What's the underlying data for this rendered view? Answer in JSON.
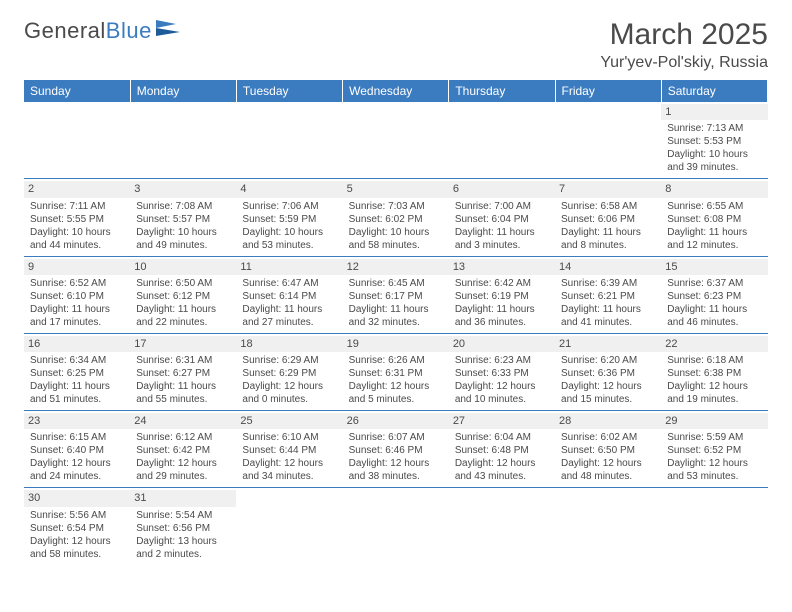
{
  "brand": {
    "word1": "General",
    "word2": "Blue"
  },
  "title": "March 2025",
  "location": "Yur'yev-Pol'skiy, Russia",
  "colors": {
    "header_bg": "#3b7bbf",
    "text": "#4a4a4a",
    "daynum_bg": "#f0f0f0",
    "border": "#3b7bbf"
  },
  "day_headers": [
    "Sunday",
    "Monday",
    "Tuesday",
    "Wednesday",
    "Thursday",
    "Friday",
    "Saturday"
  ],
  "weeks": [
    [
      {
        "n": "",
        "empty": true
      },
      {
        "n": "",
        "empty": true
      },
      {
        "n": "",
        "empty": true
      },
      {
        "n": "",
        "empty": true
      },
      {
        "n": "",
        "empty": true
      },
      {
        "n": "",
        "empty": true
      },
      {
        "n": "1",
        "sunrise": "Sunrise: 7:13 AM",
        "sunset": "Sunset: 5:53 PM",
        "daylight": "Daylight: 10 hours and 39 minutes."
      }
    ],
    [
      {
        "n": "2",
        "sunrise": "Sunrise: 7:11 AM",
        "sunset": "Sunset: 5:55 PM",
        "daylight": "Daylight: 10 hours and 44 minutes."
      },
      {
        "n": "3",
        "sunrise": "Sunrise: 7:08 AM",
        "sunset": "Sunset: 5:57 PM",
        "daylight": "Daylight: 10 hours and 49 minutes."
      },
      {
        "n": "4",
        "sunrise": "Sunrise: 7:06 AM",
        "sunset": "Sunset: 5:59 PM",
        "daylight": "Daylight: 10 hours and 53 minutes."
      },
      {
        "n": "5",
        "sunrise": "Sunrise: 7:03 AM",
        "sunset": "Sunset: 6:02 PM",
        "daylight": "Daylight: 10 hours and 58 minutes."
      },
      {
        "n": "6",
        "sunrise": "Sunrise: 7:00 AM",
        "sunset": "Sunset: 6:04 PM",
        "daylight": "Daylight: 11 hours and 3 minutes."
      },
      {
        "n": "7",
        "sunrise": "Sunrise: 6:58 AM",
        "sunset": "Sunset: 6:06 PM",
        "daylight": "Daylight: 11 hours and 8 minutes."
      },
      {
        "n": "8",
        "sunrise": "Sunrise: 6:55 AM",
        "sunset": "Sunset: 6:08 PM",
        "daylight": "Daylight: 11 hours and 12 minutes."
      }
    ],
    [
      {
        "n": "9",
        "sunrise": "Sunrise: 6:52 AM",
        "sunset": "Sunset: 6:10 PM",
        "daylight": "Daylight: 11 hours and 17 minutes."
      },
      {
        "n": "10",
        "sunrise": "Sunrise: 6:50 AM",
        "sunset": "Sunset: 6:12 PM",
        "daylight": "Daylight: 11 hours and 22 minutes."
      },
      {
        "n": "11",
        "sunrise": "Sunrise: 6:47 AM",
        "sunset": "Sunset: 6:14 PM",
        "daylight": "Daylight: 11 hours and 27 minutes."
      },
      {
        "n": "12",
        "sunrise": "Sunrise: 6:45 AM",
        "sunset": "Sunset: 6:17 PM",
        "daylight": "Daylight: 11 hours and 32 minutes."
      },
      {
        "n": "13",
        "sunrise": "Sunrise: 6:42 AM",
        "sunset": "Sunset: 6:19 PM",
        "daylight": "Daylight: 11 hours and 36 minutes."
      },
      {
        "n": "14",
        "sunrise": "Sunrise: 6:39 AM",
        "sunset": "Sunset: 6:21 PM",
        "daylight": "Daylight: 11 hours and 41 minutes."
      },
      {
        "n": "15",
        "sunrise": "Sunrise: 6:37 AM",
        "sunset": "Sunset: 6:23 PM",
        "daylight": "Daylight: 11 hours and 46 minutes."
      }
    ],
    [
      {
        "n": "16",
        "sunrise": "Sunrise: 6:34 AM",
        "sunset": "Sunset: 6:25 PM",
        "daylight": "Daylight: 11 hours and 51 minutes."
      },
      {
        "n": "17",
        "sunrise": "Sunrise: 6:31 AM",
        "sunset": "Sunset: 6:27 PM",
        "daylight": "Daylight: 11 hours and 55 minutes."
      },
      {
        "n": "18",
        "sunrise": "Sunrise: 6:29 AM",
        "sunset": "Sunset: 6:29 PM",
        "daylight": "Daylight: 12 hours and 0 minutes."
      },
      {
        "n": "19",
        "sunrise": "Sunrise: 6:26 AM",
        "sunset": "Sunset: 6:31 PM",
        "daylight": "Daylight: 12 hours and 5 minutes."
      },
      {
        "n": "20",
        "sunrise": "Sunrise: 6:23 AM",
        "sunset": "Sunset: 6:33 PM",
        "daylight": "Daylight: 12 hours and 10 minutes."
      },
      {
        "n": "21",
        "sunrise": "Sunrise: 6:20 AM",
        "sunset": "Sunset: 6:36 PM",
        "daylight": "Daylight: 12 hours and 15 minutes."
      },
      {
        "n": "22",
        "sunrise": "Sunrise: 6:18 AM",
        "sunset": "Sunset: 6:38 PM",
        "daylight": "Daylight: 12 hours and 19 minutes."
      }
    ],
    [
      {
        "n": "23",
        "sunrise": "Sunrise: 6:15 AM",
        "sunset": "Sunset: 6:40 PM",
        "daylight": "Daylight: 12 hours and 24 minutes."
      },
      {
        "n": "24",
        "sunrise": "Sunrise: 6:12 AM",
        "sunset": "Sunset: 6:42 PM",
        "daylight": "Daylight: 12 hours and 29 minutes."
      },
      {
        "n": "25",
        "sunrise": "Sunrise: 6:10 AM",
        "sunset": "Sunset: 6:44 PM",
        "daylight": "Daylight: 12 hours and 34 minutes."
      },
      {
        "n": "26",
        "sunrise": "Sunrise: 6:07 AM",
        "sunset": "Sunset: 6:46 PM",
        "daylight": "Daylight: 12 hours and 38 minutes."
      },
      {
        "n": "27",
        "sunrise": "Sunrise: 6:04 AM",
        "sunset": "Sunset: 6:48 PM",
        "daylight": "Daylight: 12 hours and 43 minutes."
      },
      {
        "n": "28",
        "sunrise": "Sunrise: 6:02 AM",
        "sunset": "Sunset: 6:50 PM",
        "daylight": "Daylight: 12 hours and 48 minutes."
      },
      {
        "n": "29",
        "sunrise": "Sunrise: 5:59 AM",
        "sunset": "Sunset: 6:52 PM",
        "daylight": "Daylight: 12 hours and 53 minutes."
      }
    ],
    [
      {
        "n": "30",
        "sunrise": "Sunrise: 5:56 AM",
        "sunset": "Sunset: 6:54 PM",
        "daylight": "Daylight: 12 hours and 58 minutes."
      },
      {
        "n": "31",
        "sunrise": "Sunrise: 5:54 AM",
        "sunset": "Sunset: 6:56 PM",
        "daylight": "Daylight: 13 hours and 2 minutes."
      },
      {
        "n": "",
        "empty": true
      },
      {
        "n": "",
        "empty": true
      },
      {
        "n": "",
        "empty": true
      },
      {
        "n": "",
        "empty": true
      },
      {
        "n": "",
        "empty": true
      }
    ]
  ]
}
